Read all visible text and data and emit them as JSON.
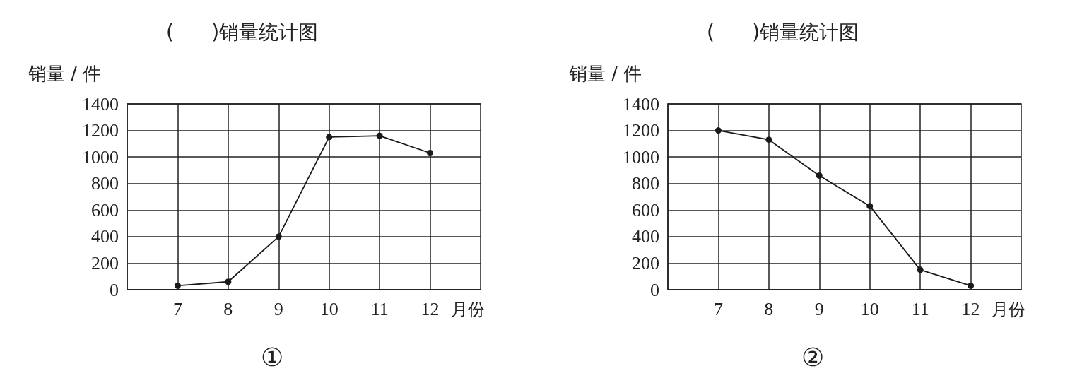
{
  "chart_data": [
    {
      "type": "line",
      "title": "(      )销量统计图",
      "xlabel": "月份",
      "ylabel": "销量 / 件",
      "annotations": [
        "①"
      ],
      "x": [
        7,
        8,
        9,
        10,
        11,
        12
      ],
      "xlim": [
        6,
        13
      ],
      "xticks": [
        7,
        8,
        9,
        10,
        11,
        12
      ],
      "ylim": [
        0,
        1400
      ],
      "yticks": [
        0,
        200,
        400,
        600,
        800,
        1000,
        1200,
        1400
      ],
      "grid": true,
      "marker": "circle",
      "line_style": "solid",
      "series": [
        {
          "color": "#1a1a1a",
          "values": [
            30,
            60,
            400,
            1150,
            1160,
            1030
          ]
        }
      ]
    },
    {
      "type": "line",
      "title": "(      )销量统计图",
      "xlabel": "月份",
      "ylabel": "销量 / 件",
      "annotations": [
        "②"
      ],
      "x": [
        7,
        8,
        9,
        10,
        11,
        12
      ],
      "xlim": [
        6,
        13
      ],
      "xticks": [
        7,
        8,
        9,
        10,
        11,
        12
      ],
      "ylim": [
        0,
        1400
      ],
      "yticks": [
        0,
        200,
        400,
        600,
        800,
        1000,
        1200,
        1400
      ],
      "grid": true,
      "marker": "circle",
      "line_style": "solid",
      "series": [
        {
          "color": "#1a1a1a",
          "values": [
            1200,
            1130,
            860,
            630,
            150,
            30
          ]
        }
      ]
    }
  ]
}
